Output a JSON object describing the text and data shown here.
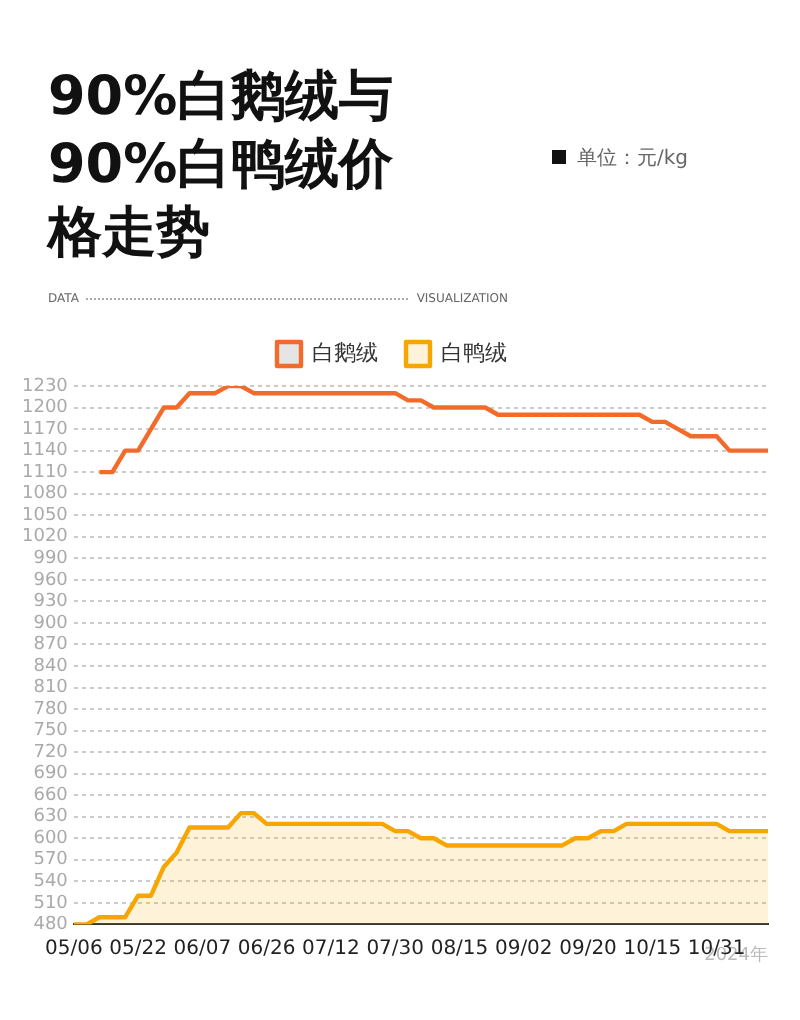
{
  "chart_data": {
    "type": "area",
    "title": "90%白鹅绒与90%白鸭绒价格走势",
    "xlabel": "2024年",
    "annotations": [
      "单位：元/kg",
      "DATA",
      "VISUALIZATION"
    ],
    "categories": [
      "05/06",
      null,
      null,
      null,
      null,
      "05/22",
      null,
      null,
      null,
      null,
      "06/07",
      null,
      null,
      null,
      null,
      "06/26",
      null,
      null,
      null,
      null,
      "07/12",
      null,
      null,
      null,
      null,
      "07/30",
      null,
      null,
      null,
      null,
      "08/15",
      null,
      null,
      null,
      null,
      "09/02",
      null,
      null,
      null,
      null,
      "09/20",
      null,
      null,
      null,
      null,
      "10/15",
      null,
      null,
      null,
      null,
      "10/31",
      null,
      null,
      null,
      null
    ],
    "series": [
      {
        "name": "白鸭绒",
        "color": "#f7a500",
        "values": [
          480,
          480,
          490,
          490,
          490,
          520,
          520,
          560,
          580,
          615,
          615,
          615,
          615,
          635,
          635,
          620,
          620,
          620,
          620,
          620,
          620,
          620,
          620,
          620,
          620,
          610,
          610,
          600,
          600,
          590,
          590,
          590,
          590,
          590,
          590,
          590,
          590,
          590,
          590,
          600,
          600,
          610,
          610,
          620,
          620,
          620,
          620,
          620,
          620,
          620,
          620,
          610,
          610,
          610,
          610
        ]
      },
      {
        "name": "白鹅绒",
        "type": "line",
        "color": "#f26b2a",
        "values": [
          null,
          null,
          1110,
          1110,
          1140,
          1140,
          1170,
          1200,
          1200,
          1220,
          1220,
          1220,
          1230,
          1230,
          1220,
          1220,
          1220,
          1220,
          1220,
          1220,
          1220,
          1220,
          1220,
          1220,
          1220,
          1220,
          1210,
          1210,
          1200,
          1200,
          1200,
          1200,
          1200,
          1190,
          1190,
          1190,
          1190,
          1190,
          1190,
          1190,
          1190,
          1190,
          1190,
          1190,
          1190,
          1180,
          1180,
          1170,
          1160,
          1160,
          1160,
          1140,
          1140,
          1140,
          1140
        ]
      }
    ],
    "ylim": [
      480,
      1230
    ],
    "yticks": [
      480,
      510,
      540,
      570,
      600,
      630,
      660,
      690,
      720,
      750,
      780,
      810,
      840,
      870,
      900,
      930,
      960,
      990,
      1020,
      1050,
      1080,
      1110,
      1140,
      1170,
      1200,
      1230
    ],
    "grid": "y",
    "legend": "top"
  }
}
